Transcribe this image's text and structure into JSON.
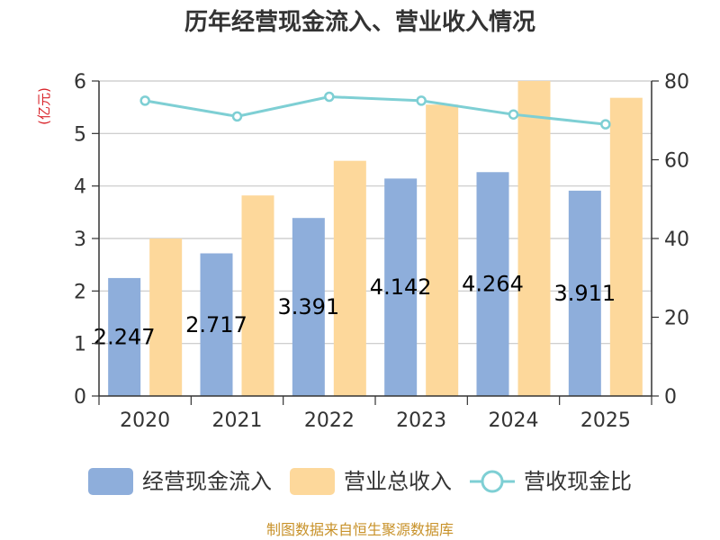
{
  "chart_data": {
    "type": "bar",
    "title": "历年经营现金流入、营业收入情况",
    "left_unit": "(亿元)",
    "right_unit": "(%)",
    "categories": [
      "2020",
      "2021",
      "2022",
      "2023",
      "2024",
      "2025"
    ],
    "series": [
      {
        "name": "经营现金流入",
        "type": "bar",
        "axis": "left",
        "color": "#8eaedb",
        "values": [
          2.247,
          2.717,
          3.391,
          4.142,
          4.264,
          3.911
        ],
        "labels": [
          "2.247",
          "2.717",
          "3.391",
          "4.142",
          "4.264",
          "3.911"
        ]
      },
      {
        "name": "营业总收入",
        "type": "bar",
        "axis": "left",
        "color": "#fdd89b",
        "values": [
          3.0,
          3.82,
          4.48,
          5.55,
          6.0,
          5.68
        ]
      },
      {
        "name": "营收现金比",
        "type": "line",
        "axis": "right",
        "color": "#7ecfd4",
        "values": [
          75,
          71,
          76,
          75,
          71.5,
          69
        ]
      }
    ],
    "ylim_left": [
      0,
      6
    ],
    "yticks_left": [
      "0",
      "1",
      "2",
      "3",
      "4",
      "5",
      "6"
    ],
    "ylim_right": [
      0,
      80
    ],
    "yticks_right": [
      "0",
      "20",
      "40",
      "60",
      "80"
    ],
    "grid": true,
    "legend_position": "bottom"
  },
  "footer": {
    "source": "制图数据来自恒生聚源数据库"
  }
}
